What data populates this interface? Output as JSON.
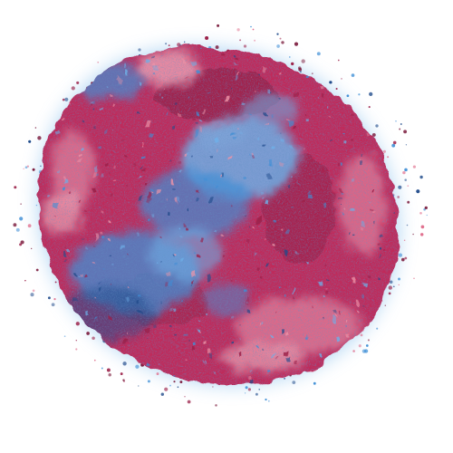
{
  "image": {
    "subject": "cell-blob",
    "palette": {
      "background": "#ffffff",
      "glow": "#7fb6e6",
      "body": "#c02a5a",
      "body_dark": "#9a1f48",
      "highlight": "#e0708e",
      "highlight_light": "#ec94a8",
      "blue": "#3f8fd6",
      "blue_light": "#6fb0e8",
      "navy": "#1f4a8a",
      "speckle_dark": "#7a1a3c"
    }
  }
}
